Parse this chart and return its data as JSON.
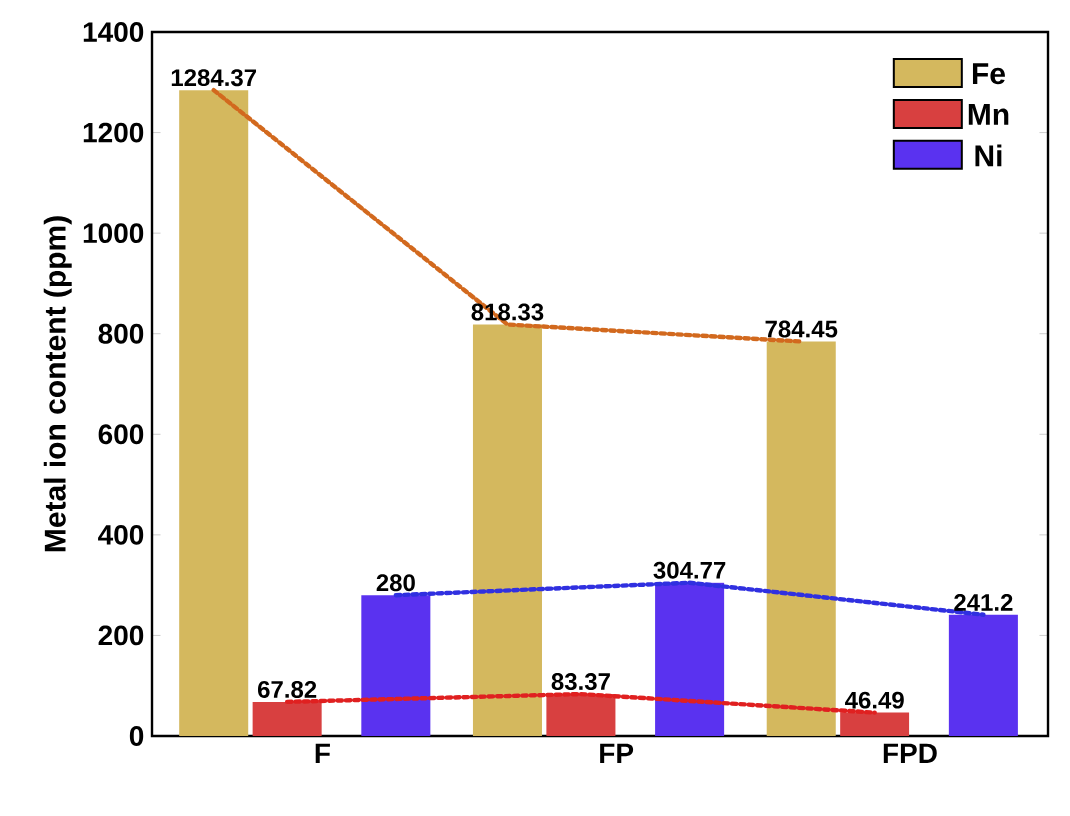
{
  "chart_data": {
    "type": "bar",
    "ylabel": "Metal ion content (ppm)",
    "categories": [
      "F",
      "FP",
      "FPD"
    ],
    "series": [
      {
        "name": "Fe",
        "color": "#d4b85e",
        "values": [
          1284.37,
          818.33,
          784.45
        ],
        "value_labels": [
          "1284.37",
          "818.33",
          "784.45"
        ]
      },
      {
        "name": "Mn",
        "color": "#d84040",
        "values": [
          67.82,
          83.37,
          46.49
        ],
        "value_labels": [
          "67.82",
          "83.37",
          "46.49"
        ]
      },
      {
        "name": "Ni",
        "color": "#5a32f0",
        "values": [
          280,
          304.77,
          241.2
        ],
        "value_labels": [
          "280",
          "304.77",
          "241.2"
        ]
      },
      {
        "type": "line",
        "color": "#d2691e",
        "line_style": "dotted",
        "values": [
          1284.37,
          818.33,
          784.45
        ]
      },
      {
        "type": "line",
        "color": "#e02020",
        "line_style": "dotted",
        "values": [
          67.82,
          83.37,
          46.49
        ]
      },
      {
        "type": "line",
        "color": "#3030e0",
        "line_style": "dotted",
        "values": [
          280,
          304.77,
          241.2
        ]
      }
    ],
    "ylim": [
      0,
      1400
    ],
    "yticks": [
      0,
      200,
      400,
      600,
      800,
      1000,
      1200,
      1400
    ],
    "legend": "top right",
    "grid": false
  }
}
